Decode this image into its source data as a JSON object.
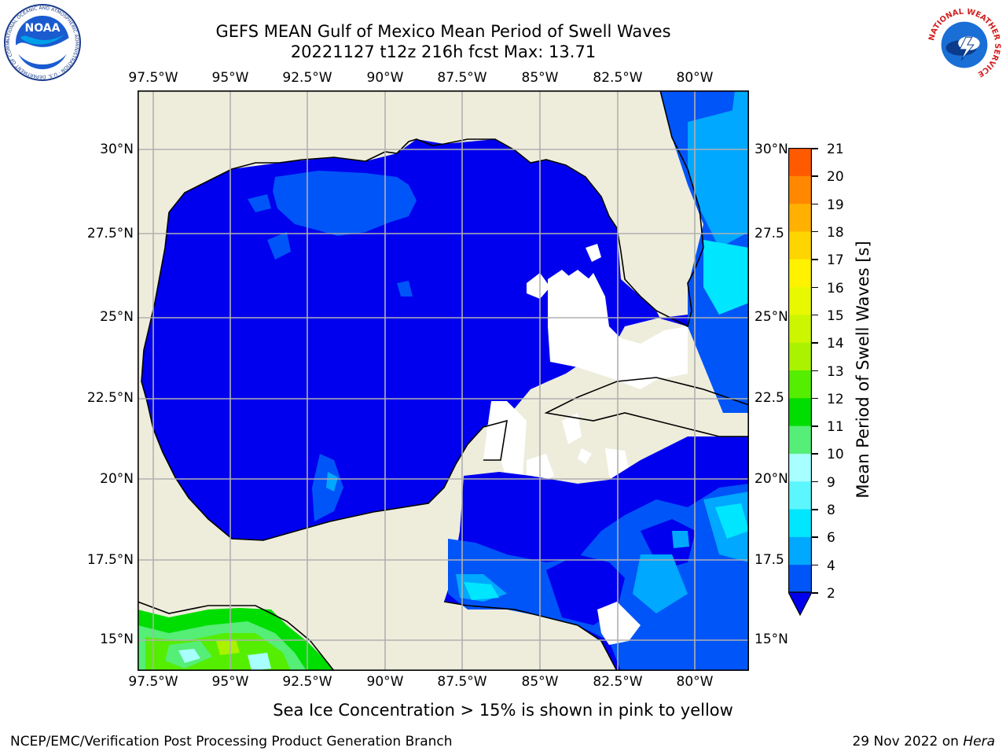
{
  "title": {
    "line1": "GEFS MEAN Gulf of Mexico Mean Period of Swell Waves",
    "line2": "20221127 t12z 216h fcst   Max: 13.71"
  },
  "logos": {
    "noaa_text": "NOAA",
    "noaa_ring": "NATIONAL OCEANIC AND ATMOSPHERIC ADMINISTRATION · U.S. DEPARTMENT OF COMMERCE",
    "nws_ring": "NATIONAL WEATHER SERVICE"
  },
  "axes": {
    "lon_ticks": [
      "97.5°W",
      "95°W",
      "92.5°W",
      "90°W",
      "87.5°W",
      "85°W",
      "82.5°W",
      "80°W"
    ],
    "lat_ticks_left": [
      "30°N",
      "27.5°N",
      "25°N",
      "22.5°N",
      "20°N",
      "17.5°N",
      "15°N"
    ],
    "lat_ticks_right": [
      "30°N",
      "27.5",
      "25°N",
      "22.5",
      "20°N",
      "17.5",
      "15°N"
    ]
  },
  "colorbar": {
    "label": "Mean Period of Swell Waves [s]",
    "ticks": [
      "2",
      "4",
      "6",
      "8",
      "9",
      "10",
      "11",
      "12",
      "13",
      "14",
      "15",
      "16",
      "17",
      "18",
      "19",
      "20",
      "21"
    ],
    "colors": [
      "#0055f8",
      "#00a8ff",
      "#00e6ff",
      "#5cf6ff",
      "#a8ffff",
      "#55ee77",
      "#00dd00",
      "#55ee00",
      "#aaf200",
      "#ccf500",
      "#e8f800",
      "#fff200",
      "#ffd500",
      "#ffb000",
      "#ff8800",
      "#ff5a00",
      "#ff2a00",
      "#ee0000"
    ],
    "under_color": "#0000ee"
  },
  "colors": {
    "land": "#eeeddc",
    "ocean_deep": "#0000ee",
    "ocean_mid": "#0055f8",
    "ocean_light": "#00a8ff",
    "ocean_cyan": "#00e6ff",
    "green": "#55ee77",
    "grid": "#b0b0b0"
  },
  "note": "Sea Ice Concentration > 15% is shown in pink to yellow",
  "footer": {
    "left": "NCEP/EMC/Verification Post Processing Product Generation Branch",
    "right_date": "29 Nov 2022 on",
    "right_host": "Hera"
  }
}
